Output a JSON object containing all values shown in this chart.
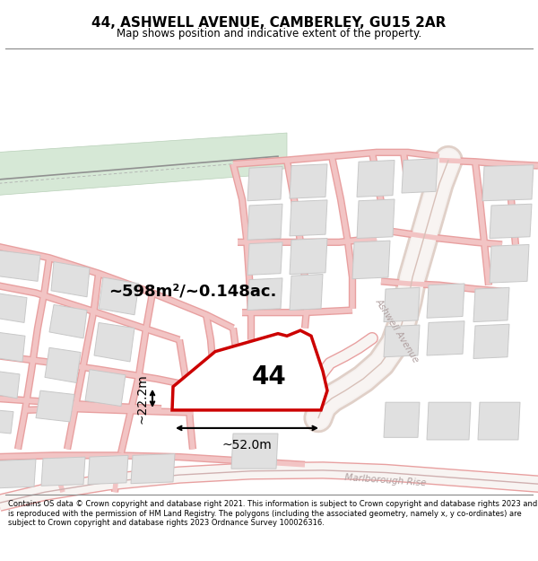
{
  "title": "44, ASHWELL AVENUE, CAMBERLEY, GU15 2AR",
  "subtitle": "Map shows position and indicative extent of the property.",
  "footer": "Contains OS data © Crown copyright and database right 2021. This information is subject to Crown copyright and database rights 2023 and is reproduced with the permission of HM Land Registry. The polygons (including the associated geometry, namely x, y co-ordinates) are subject to Crown copyright and database rights 2023 Ordnance Survey 100026316.",
  "area_label": "~598m²/~0.148ac.",
  "property_number": "44",
  "dim_width": "~52.0m",
  "dim_height": "~22.2m",
  "map_bg": "#f7f7f7",
  "road_color": "#f2c4c4",
  "road_edge_color": "#e8a0a0",
  "building_fill": "#e0e0e0",
  "building_edge": "#c8c8c8",
  "green_fill": "#d6e8d6",
  "green_edge": "#b8d0b8",
  "grey_road_fill": "#e8e8e8",
  "grey_road_edge": "#d0d0d0",
  "property_fill": "#ffffff",
  "property_edge": "#cc0000",
  "road_label_ashwell": "Ashwell Avenue",
  "road_label_marlborough": "Marlborough Rise",
  "road_label_color": "#b0a0a0"
}
